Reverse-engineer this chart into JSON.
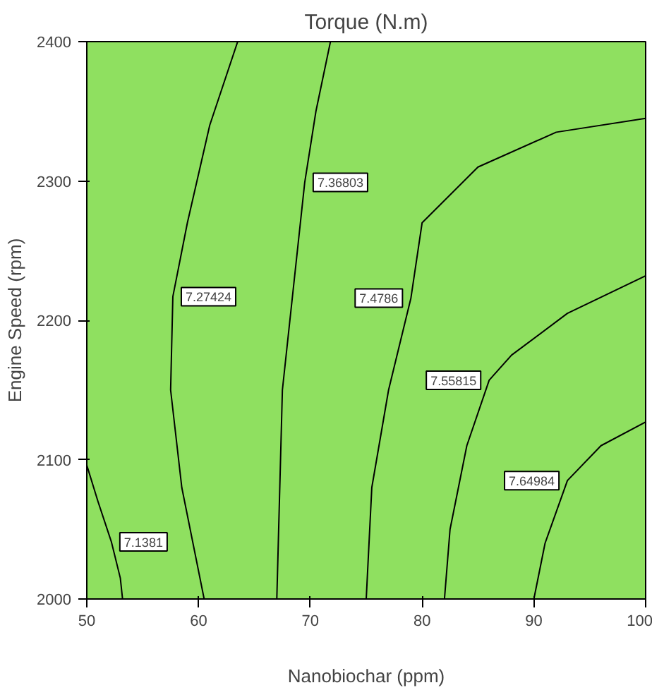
{
  "chart_data": {
    "type": "line",
    "title": "Torque (N.m)",
    "xlabel": "Nanobiochar (ppm)",
    "ylabel": "Engine Speed (rpm)",
    "xlim": [
      50,
      100
    ],
    "ylim": [
      2000,
      2400
    ],
    "xticks": [
      50,
      60,
      70,
      80,
      90,
      100
    ],
    "yticks": [
      2000,
      2100,
      2200,
      2300,
      2400
    ],
    "grid": false,
    "marker": "none",
    "series": [
      {
        "name": "7.1381",
        "color": "#000000",
        "x": [
          50,
          51,
          52.2,
          53,
          53.2
        ],
        "values": [
          2096,
          2070,
          2041,
          2015,
          2000
        ]
      },
      {
        "name": "7.27424",
        "color": "#000000",
        "x": [
          63.5,
          61,
          59,
          57.7,
          57.5,
          58.5,
          60.5
        ],
        "values": [
          2400,
          2340,
          2270,
          2217,
          2150,
          2080,
          2000
        ]
      },
      {
        "name": "7.36803",
        "color": "#000000",
        "x": [
          71.8,
          70.5,
          69.5,
          67.5,
          67
        ],
        "values": [
          2400,
          2350,
          2299,
          2150,
          2000
        ]
      },
      {
        "name": "7.4786",
        "color": "#000000",
        "x": [
          100,
          92,
          85,
          80,
          79,
          77,
          75.5,
          75
        ],
        "values": [
          2345,
          2335,
          2310,
          2270,
          2216,
          2150,
          2080,
          2000
        ]
      },
      {
        "name": "7.55815",
        "color": "#000000",
        "x": [
          100,
          93,
          88,
          86,
          84,
          82.5,
          82
        ],
        "values": [
          2232,
          2205,
          2175,
          2157,
          2110,
          2050,
          2000
        ]
      },
      {
        "name": "7.64984",
        "color": "#000000",
        "x": [
          100,
          96,
          93,
          91,
          90
        ],
        "values": [
          2127,
          2110,
          2085,
          2040,
          2000
        ]
      }
    ]
  }
}
